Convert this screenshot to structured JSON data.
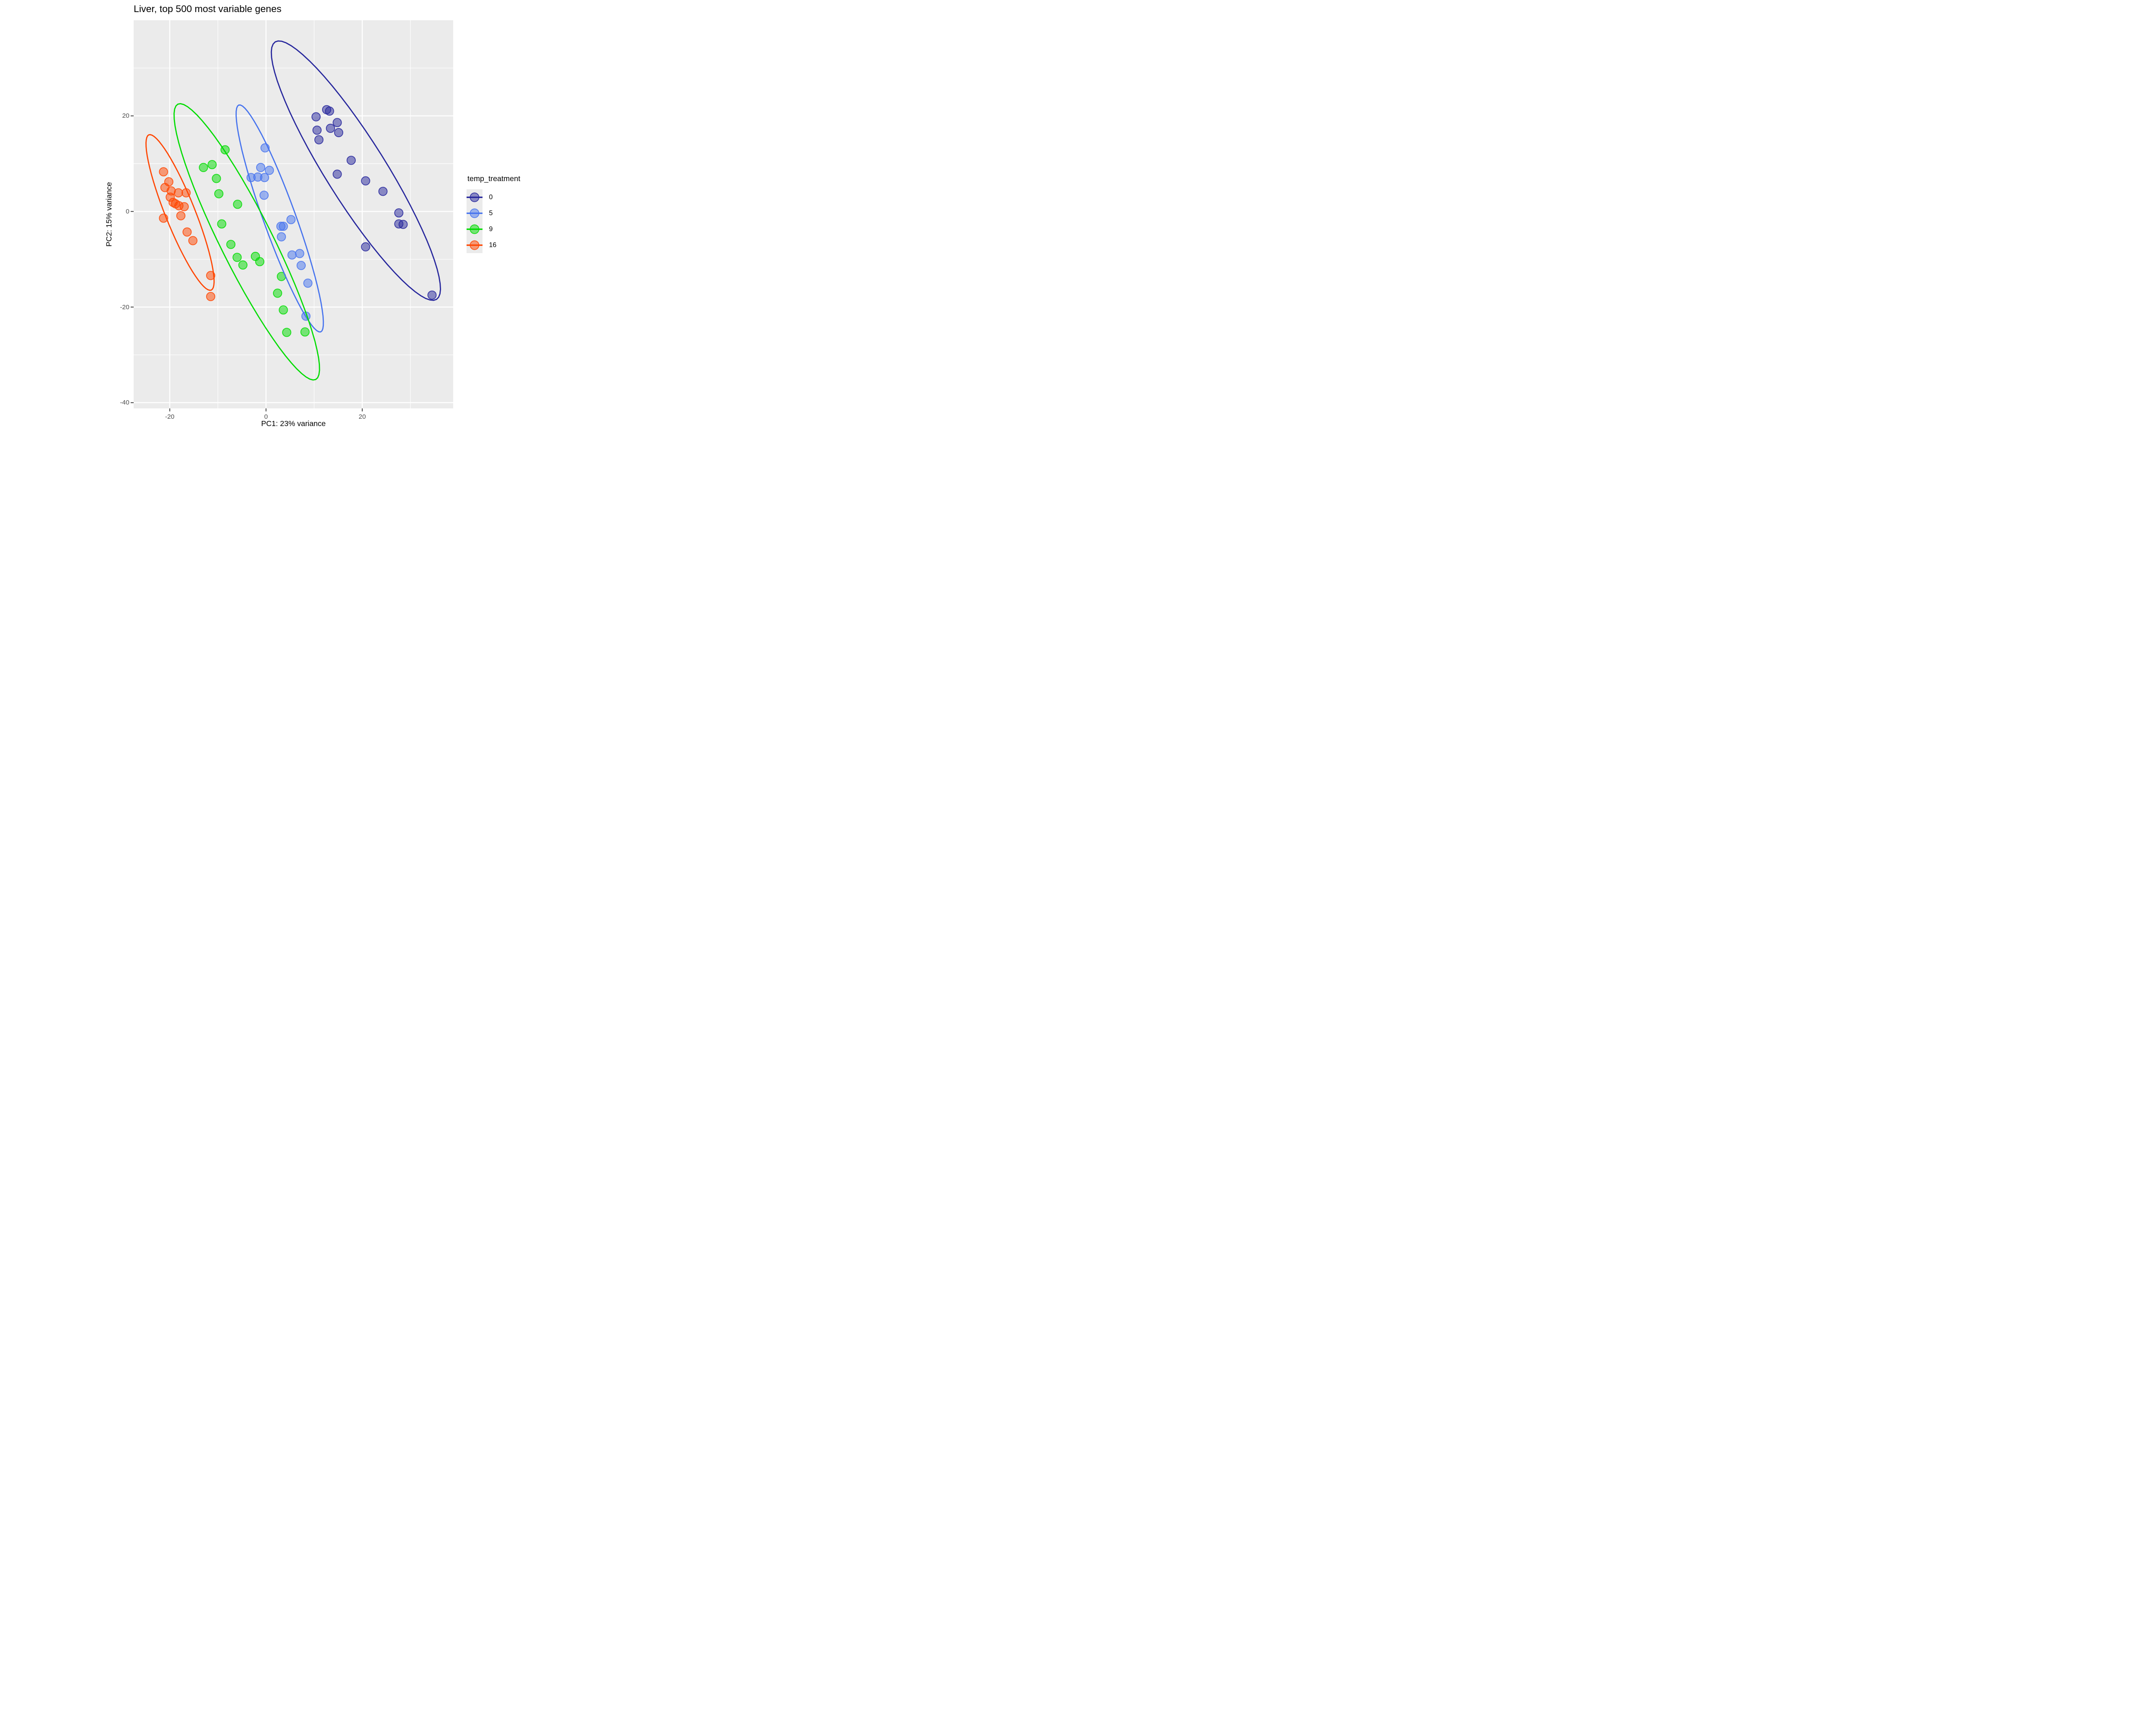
{
  "title": "Liver, top 500 most variable genes",
  "chart_data": {
    "type": "scatter",
    "title": "Liver, top 500 most variable genes",
    "xlabel": "PC1: 23% variance",
    "ylabel": "PC2: 15% variance",
    "xlim": [
      -27.5,
      38.9
    ],
    "ylim": [
      -41.2,
      40.0
    ],
    "xtick_values": [
      -20,
      0,
      20
    ],
    "xtick_labels": [
      "-20",
      "0",
      "20"
    ],
    "ytick_values": [
      20,
      0,
      -20,
      -40
    ],
    "ytick_labels": [
      "20",
      "0",
      "-20",
      "-40"
    ],
    "grid": {
      "major": true,
      "minor": true,
      "major_color": "#FFFFFF",
      "minor_color": "#FFFFFF"
    },
    "panel_bg": "#EBEBEB",
    "point_alpha": 0.5,
    "ellipse_level_radius": 2.447,
    "legend": {
      "title": "temp_treatment",
      "position": "right"
    },
    "series": [
      {
        "name": "0",
        "color": "#26269C",
        "points": [
          [
            12.6,
            21.3
          ],
          [
            13.2,
            21.0
          ],
          [
            10.4,
            19.8
          ],
          [
            14.8,
            18.6
          ],
          [
            13.4,
            17.4
          ],
          [
            10.6,
            17.0
          ],
          [
            15.1,
            16.5
          ],
          [
            11.0,
            15.0
          ],
          [
            17.7,
            10.7
          ],
          [
            14.8,
            7.8
          ],
          [
            20.7,
            6.4
          ],
          [
            24.3,
            4.2
          ],
          [
            27.6,
            -0.3
          ],
          [
            27.6,
            -2.6
          ],
          [
            28.5,
            -2.7
          ],
          [
            20.7,
            -7.4
          ],
          [
            34.5,
            -17.5
          ]
        ]
      },
      {
        "name": "5",
        "color": "#4673EE",
        "points": [
          [
            -0.2,
            13.3
          ],
          [
            -1.1,
            9.2
          ],
          [
            0.7,
            8.6
          ],
          [
            -3.1,
            7.1
          ],
          [
            -1.7,
            7.2
          ],
          [
            -0.3,
            7.1
          ],
          [
            -0.4,
            3.4
          ],
          [
            5.2,
            -1.7
          ],
          [
            3.1,
            -3.1
          ],
          [
            3.6,
            -3.1
          ],
          [
            3.2,
            -5.3
          ],
          [
            5.4,
            -9.1
          ],
          [
            7.0,
            -8.8
          ],
          [
            7.3,
            -11.3
          ],
          [
            8.7,
            -15.0
          ],
          [
            8.3,
            -21.9
          ]
        ]
      },
      {
        "name": "9",
        "color": "#00DC00",
        "points": [
          [
            -8.5,
            12.9
          ],
          [
            -13.0,
            9.2
          ],
          [
            -11.2,
            9.8
          ],
          [
            -10.3,
            6.9
          ],
          [
            -9.8,
            3.7
          ],
          [
            -5.9,
            1.5
          ],
          [
            -9.2,
            -2.6
          ],
          [
            -7.3,
            -6.9
          ],
          [
            -6.0,
            -9.6
          ],
          [
            -4.8,
            -11.2
          ],
          [
            -2.2,
            -9.4
          ],
          [
            -1.3,
            -10.5
          ],
          [
            3.2,
            -13.6
          ],
          [
            2.4,
            -17.1
          ],
          [
            3.6,
            -20.6
          ],
          [
            4.3,
            -25.3
          ],
          [
            8.1,
            -25.2
          ]
        ]
      },
      {
        "name": "16",
        "color": "#FF4500",
        "points": [
          [
            -21.3,
            8.3
          ],
          [
            -20.2,
            6.2
          ],
          [
            -21.0,
            5.0
          ],
          [
            -19.7,
            4.3
          ],
          [
            -18.2,
            3.9
          ],
          [
            -16.6,
            3.9
          ],
          [
            -19.9,
            3.0
          ],
          [
            -19.3,
            1.9
          ],
          [
            -18.8,
            1.6
          ],
          [
            -18.1,
            1.2
          ],
          [
            -17.0,
            1.0
          ],
          [
            -17.7,
            -0.9
          ],
          [
            -21.3,
            -1.4
          ],
          [
            -16.4,
            -4.3
          ],
          [
            -15.2,
            -6.1
          ],
          [
            -11.5,
            -13.4
          ],
          [
            -11.5,
            -17.8
          ]
        ]
      }
    ]
  }
}
